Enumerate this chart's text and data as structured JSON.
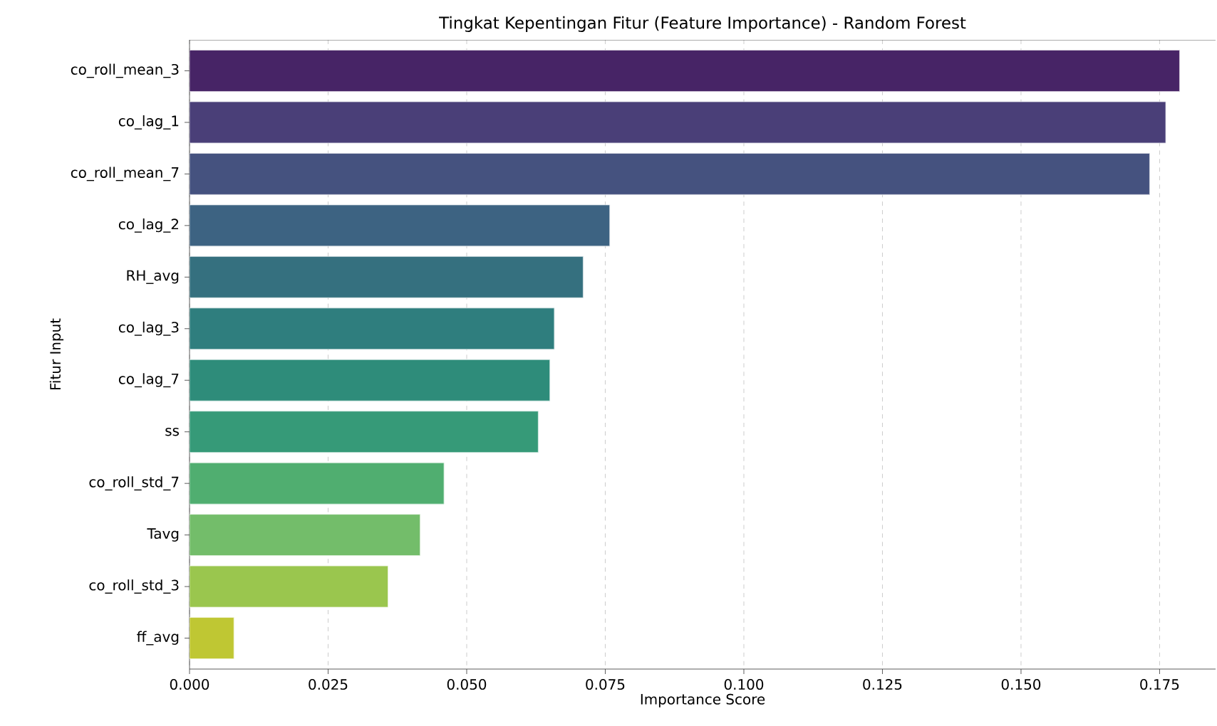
{
  "chart_data": {
    "type": "bar",
    "orientation": "horizontal",
    "title": "Tingkat Kepentingan Fitur (Feature Importance) - Random Forest",
    "xlabel": "Importance Score",
    "ylabel": "Fitur Input",
    "categories": [
      "co_roll_mean_3",
      "co_lag_1",
      "co_roll_mean_7",
      "co_lag_2",
      "RH_avg",
      "co_lag_3",
      "co_lag_7",
      "ss",
      "co_roll_std_7",
      "Tavg",
      "co_roll_std_3",
      "ff_avg"
    ],
    "values": [
      0.1786,
      0.1761,
      0.1732,
      0.0758,
      0.071,
      0.0658,
      0.065,
      0.0629,
      0.0459,
      0.0416,
      0.0358,
      0.008
    ],
    "colors": [
      "#472466",
      "#4a3f78",
      "#45527f",
      "#3d6382",
      "#35707f",
      "#2f7e7e",
      "#2e8c7a",
      "#369a78",
      "#50ae70",
      "#73bd6a",
      "#9ac64e",
      "#bfc733"
    ],
    "xlim": [
      0,
      0.1851
    ],
    "xticks": [
      {
        "value": 0,
        "label": "0.000"
      },
      {
        "value": 0.025,
        "label": "0.025"
      },
      {
        "value": 0.05,
        "label": "0.050"
      },
      {
        "value": 0.075,
        "label": "0.075"
      },
      {
        "value": 0.1,
        "label": "0.100"
      },
      {
        "value": 0.125,
        "label": "0.125"
      },
      {
        "value": 0.15,
        "label": "0.150"
      },
      {
        "value": 0.175,
        "label": "0.175"
      }
    ],
    "grid": "x"
  }
}
